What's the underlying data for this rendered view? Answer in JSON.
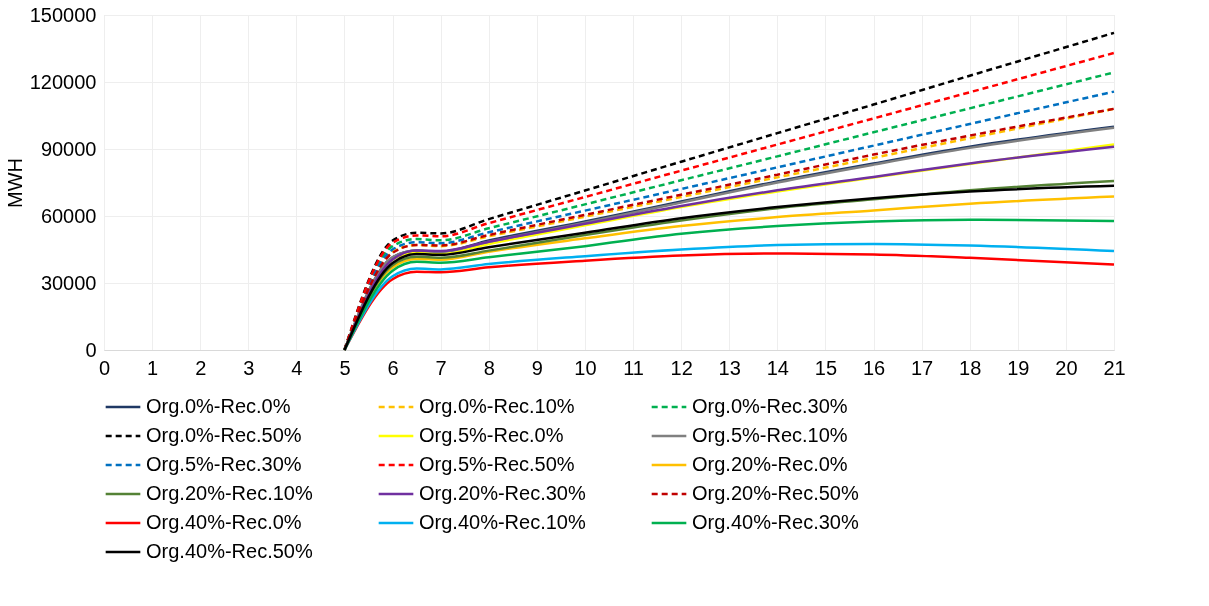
{
  "chart_data": {
    "type": "line",
    "ylabel": "MWH",
    "x": [
      5,
      6,
      6.5,
      7,
      8,
      10,
      12,
      14,
      16,
      18,
      21
    ],
    "xlim": [
      0,
      21
    ],
    "xticks": [
      0,
      1,
      2,
      3,
      4,
      5,
      6,
      7,
      8,
      9,
      10,
      11,
      12,
      13,
      14,
      15,
      16,
      17,
      18,
      19,
      20,
      21
    ],
    "ylim": [
      0,
      150000
    ],
    "yticks": [
      0,
      30000,
      60000,
      90000,
      120000,
      150000
    ],
    "grid": true,
    "legend": "bottom",
    "marker": "none",
    "series": [
      {
        "name": "Org.0%-Rec.0%",
        "color": "#1f3864",
        "line_style": "solid",
        "values": [
          0,
          41500,
          44500,
          44000,
          49000,
          57500,
          66500,
          75500,
          83500,
          91000,
          100000
        ]
      },
      {
        "name": "Org.0%-Rec.10%",
        "color": "#ffc000",
        "line_style": "dashed",
        "values": [
          0,
          44000,
          47000,
          46500,
          50900,
          59700,
          68500,
          77300,
          86000,
          94800,
          108000
        ]
      },
      {
        "name": "Org.0%-Rec.30%",
        "color": "#00b050",
        "line_style": "dashed",
        "values": [
          0,
          46500,
          49700,
          49100,
          54500,
          65200,
          76000,
          86700,
          97500,
          108200,
          124300
        ]
      },
      {
        "name": "Org.0%-Rec.50%",
        "color": "#000000",
        "line_style": "dashed",
        "values": [
          0,
          49000,
          52500,
          52200,
          58600,
          71400,
          84300,
          97100,
          109900,
          122800,
          142000
        ]
      },
      {
        "name": "Org.5%-Rec.0%",
        "color": "#ffff00",
        "line_style": "solid",
        "values": [
          0,
          40500,
          43500,
          43000,
          47500,
          55800,
          64000,
          71000,
          77200,
          83300,
          92000
        ]
      },
      {
        "name": "Org.5%-Rec.10%",
        "color": "#808080",
        "line_style": "solid",
        "values": [
          0,
          41500,
          44500,
          44000,
          48500,
          57000,
          66000,
          75000,
          83000,
          90500,
          99500
        ]
      },
      {
        "name": "Org.5%-Rec.30%",
        "color": "#0070c0",
        "line_style": "dashed",
        "values": [
          0,
          45000,
          48300,
          47800,
          52700,
          62400,
          72100,
          81800,
          91500,
          101200,
          115700
        ]
      },
      {
        "name": "Org.5%-Rec.50%",
        "color": "#ff0000",
        "line_style": "dashed",
        "values": [
          0,
          48000,
          51300,
          50900,
          56800,
          68500,
          80300,
          92000,
          103700,
          115400,
          133000
        ]
      },
      {
        "name": "Org.20%-Rec.0%",
        "color": "#ffc000",
        "line_style": "solid",
        "values": [
          0,
          37000,
          40800,
          40400,
          44000,
          50000,
          55500,
          59500,
          62500,
          65500,
          68700
        ]
      },
      {
        "name": "Org.20%-Rec.10%",
        "color": "#548235",
        "line_style": "solid",
        "values": [
          0,
          38000,
          41700,
          41300,
          44500,
          51500,
          58000,
          63500,
          67500,
          71500,
          75700
        ]
      },
      {
        "name": "Org.20%-Rec.30%",
        "color": "#7030a0",
        "line_style": "solid",
        "values": [
          0,
          40500,
          44500,
          44300,
          48500,
          56500,
          64500,
          71500,
          77500,
          83500,
          91000
        ]
      },
      {
        "name": "Org.20%-Rec.50%",
        "color": "#c00000",
        "line_style": "dashed",
        "values": [
          0,
          43500,
          47000,
          46800,
          51500,
          60500,
          69500,
          78500,
          87500,
          96000,
          108000
        ]
      },
      {
        "name": "Org.40%-Rec.0%",
        "color": "#ff0000",
        "line_style": "solid",
        "values": [
          0,
          31700,
          35000,
          34800,
          37000,
          40000,
          42300,
          43200,
          42800,
          41300,
          38300
        ]
      },
      {
        "name": "Org.40%-Rec.10%",
        "color": "#00b0f0",
        "line_style": "solid",
        "values": [
          0,
          33000,
          36500,
          36100,
          38500,
          42000,
          45000,
          47000,
          47500,
          46800,
          44300
        ]
      },
      {
        "name": "Org.40%-Rec.30%",
        "color": "#00b050",
        "line_style": "solid",
        "values": [
          0,
          35500,
          39500,
          39100,
          41500,
          46500,
          52000,
          55500,
          57500,
          58300,
          57800
        ]
      },
      {
        "name": "Org.40%-Rec.50%",
        "color": "#000000",
        "line_style": "solid",
        "values": [
          0,
          39000,
          43000,
          42600,
          46000,
          52500,
          59000,
          64000,
          68000,
          71000,
          73500
        ]
      }
    ]
  }
}
